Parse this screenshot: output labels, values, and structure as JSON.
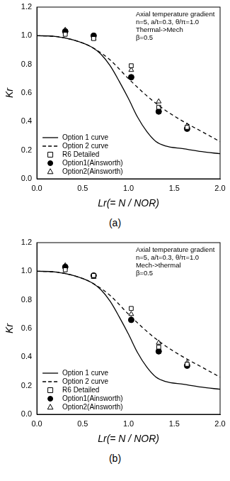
{
  "chart_data": [
    {
      "type": "line",
      "caption": "(a)",
      "x_label": "Lr(= N / NOR)",
      "y_label": "Kr",
      "annotations": [
        "Axial temperature gradient",
        "n=5, a/t=0.3, θ/π=1.0",
        "Thermal->Mech",
        "β=0.5"
      ],
      "xlim": [
        0,
        2
      ],
      "xticks": [
        {
          "value": 0,
          "label": "0.0"
        },
        {
          "value": 0.5,
          "label": "0.5"
        },
        {
          "value": 1,
          "label": "1.0"
        },
        {
          "value": 1.5,
          "label": "1.5"
        },
        {
          "value": 2,
          "label": "2.0"
        }
      ],
      "ylim": [
        0,
        1.2
      ],
      "yticks": [
        {
          "value": 0,
          "label": "0.0"
        },
        {
          "value": 0.2,
          "label": "0.2"
        },
        {
          "value": 0.4,
          "label": "0.4"
        },
        {
          "value": 0.6,
          "label": "0.6"
        },
        {
          "value": 0.8,
          "label": "0.8"
        },
        {
          "value": 1,
          "label": "1.0"
        },
        {
          "value": 1.2,
          "label": "1.2"
        }
      ],
      "grid": false,
      "legend": "lower left",
      "series": [
        {
          "name": "Option 1 curve",
          "type": "line",
          "line_style": "solid",
          "color": "#000000",
          "x": [
            0,
            0.2,
            0.4,
            0.6,
            0.7,
            0.8,
            0.9,
            1.0,
            1.1,
            1.2,
            1.3,
            1.4,
            1.6,
            1.8,
            2.0
          ],
          "values": [
            1.0,
            0.995,
            0.97,
            0.92,
            0.87,
            0.79,
            0.68,
            0.56,
            0.43,
            0.33,
            0.26,
            0.23,
            0.21,
            0.19,
            0.175
          ]
        },
        {
          "name": "Option 2 curve",
          "type": "line",
          "line_style": "dashed",
          "color": "#000000",
          "x": [
            0,
            0.2,
            0.4,
            0.6,
            0.8,
            1.0,
            1.2,
            1.4,
            1.6,
            1.8,
            2.0
          ],
          "values": [
            1.0,
            0.995,
            0.97,
            0.92,
            0.83,
            0.7,
            0.58,
            0.48,
            0.4,
            0.33,
            0.26
          ]
        },
        {
          "name": "R6 Detailed",
          "type": "scatter",
          "marker": "open_square",
          "color": "#000000",
          "x": [
            0.31,
            0.62,
            1.03,
            1.33,
            1.64
          ],
          "values": [
            1.01,
            0.98,
            0.79,
            0.5,
            0.36
          ]
        },
        {
          "name": "Option1(Ainsworth)",
          "type": "scatter",
          "marker": "filled_circle",
          "color": "#000000",
          "x": [
            0.31,
            0.62,
            1.03,
            1.33,
            1.64
          ],
          "values": [
            1.03,
            1.0,
            0.71,
            0.47,
            0.35
          ]
        },
        {
          "name": "Option2(Ainsworth)",
          "type": "scatter",
          "marker": "open_triangle",
          "color": "#000000",
          "x": [
            0.31,
            0.62,
            1.03,
            1.33,
            1.64
          ],
          "values": [
            1.04,
            0.98,
            0.76,
            0.54,
            0.37
          ]
        }
      ]
    },
    {
      "type": "line",
      "caption": "(b)",
      "x_label": "Lr(= N / NOR)",
      "y_label": "Kr",
      "annotations": [
        "Axial temperature gradient",
        "n=5, a/t=0.3, θ/π=1.0",
        "Mech->thermal",
        "β=0.5"
      ],
      "xlim": [
        0,
        2
      ],
      "xticks": [
        {
          "value": 0,
          "label": "0.0"
        },
        {
          "value": 0.5,
          "label": "0.5"
        },
        {
          "value": 1,
          "label": "1.0"
        },
        {
          "value": 1.5,
          "label": "1.5"
        },
        {
          "value": 2,
          "label": "2.0"
        }
      ],
      "ylim": [
        0,
        1.2
      ],
      "yticks": [
        {
          "value": 0,
          "label": "0.0"
        },
        {
          "value": 0.2,
          "label": "0.2"
        },
        {
          "value": 0.4,
          "label": "0.4"
        },
        {
          "value": 0.6,
          "label": "0.6"
        },
        {
          "value": 0.8,
          "label": "0.8"
        },
        {
          "value": 1,
          "label": "1.0"
        },
        {
          "value": 1.2,
          "label": "1.2"
        }
      ],
      "grid": false,
      "legend": "lower left",
      "series": [
        {
          "name": "Option 1 curve",
          "type": "line",
          "line_style": "solid",
          "color": "#000000",
          "x": [
            0,
            0.2,
            0.4,
            0.6,
            0.7,
            0.8,
            0.9,
            1.0,
            1.1,
            1.2,
            1.3,
            1.4,
            1.6,
            1.8,
            2.0
          ],
          "values": [
            1.0,
            0.995,
            0.97,
            0.92,
            0.87,
            0.79,
            0.68,
            0.56,
            0.43,
            0.33,
            0.26,
            0.23,
            0.21,
            0.19,
            0.175
          ]
        },
        {
          "name": "Option 2 curve",
          "type": "line",
          "line_style": "dashed",
          "color": "#000000",
          "x": [
            0,
            0.2,
            0.4,
            0.6,
            0.8,
            1.0,
            1.2,
            1.4,
            1.6,
            1.8,
            2.0
          ],
          "values": [
            1.0,
            0.995,
            0.97,
            0.92,
            0.83,
            0.7,
            0.58,
            0.48,
            0.4,
            0.33,
            0.26
          ]
        },
        {
          "name": "R6 Detailed",
          "type": "scatter",
          "marker": "open_square",
          "color": "#000000",
          "x": [
            0.31,
            0.62,
            1.03,
            1.33,
            1.64
          ],
          "values": [
            1.01,
            0.97,
            0.74,
            0.47,
            0.35
          ]
        },
        {
          "name": "Option1(Ainsworth)",
          "type": "scatter",
          "marker": "filled_circle",
          "color": "#000000",
          "x": [
            0.31,
            0.62,
            1.03,
            1.33,
            1.64
          ],
          "values": [
            1.03,
            0.97,
            0.66,
            0.44,
            0.34
          ]
        },
        {
          "name": "Option2(Ainsworth)",
          "type": "scatter",
          "marker": "open_triangle",
          "color": "#000000",
          "x": [
            0.31,
            0.62,
            1.03,
            1.33,
            1.64
          ],
          "values": [
            1.04,
            0.96,
            0.7,
            0.5,
            0.36
          ]
        }
      ]
    }
  ]
}
